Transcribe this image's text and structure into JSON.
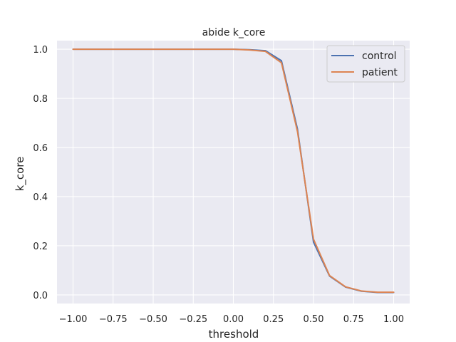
{
  "chart_data": {
    "type": "line",
    "title": "abide k_core",
    "xlabel": "threshold",
    "ylabel": "k_core",
    "xlim": [
      -1.1,
      1.1
    ],
    "ylim": [
      -0.035,
      1.035
    ],
    "x_ticks": [
      "-1.00",
      "-0.75",
      "-0.50",
      "-0.25",
      "0.00",
      "0.25",
      "0.50",
      "0.75",
      "1.00"
    ],
    "y_ticks": [
      "0.0",
      "0.2",
      "0.4",
      "0.6",
      "0.8",
      "1.0"
    ],
    "grid": true,
    "legend_position": "top-right",
    "x": [
      -1.0,
      -0.9,
      -0.8,
      -0.7,
      -0.6,
      -0.5,
      -0.4,
      -0.3,
      -0.2,
      -0.1,
      0.0,
      0.1,
      0.2,
      0.3,
      0.4,
      0.5,
      0.6,
      0.7,
      0.8,
      0.9,
      1.0
    ],
    "series": [
      {
        "name": "control",
        "color": "#4c72b0",
        "values": [
          1.0,
          1.0,
          1.0,
          1.0,
          1.0,
          1.0,
          1.0,
          1.0,
          1.0,
          1.0,
          1.0,
          0.998,
          0.994,
          0.953,
          0.675,
          0.215,
          0.077,
          0.032,
          0.015,
          0.01,
          0.01
        ]
      },
      {
        "name": "patient",
        "color": "#dd8452",
        "values": [
          1.0,
          1.0,
          1.0,
          1.0,
          1.0,
          1.0,
          1.0,
          1.0,
          1.0,
          1.0,
          1.0,
          0.997,
          0.991,
          0.945,
          0.665,
          0.227,
          0.079,
          0.033,
          0.016,
          0.011,
          0.011
        ]
      }
    ]
  }
}
